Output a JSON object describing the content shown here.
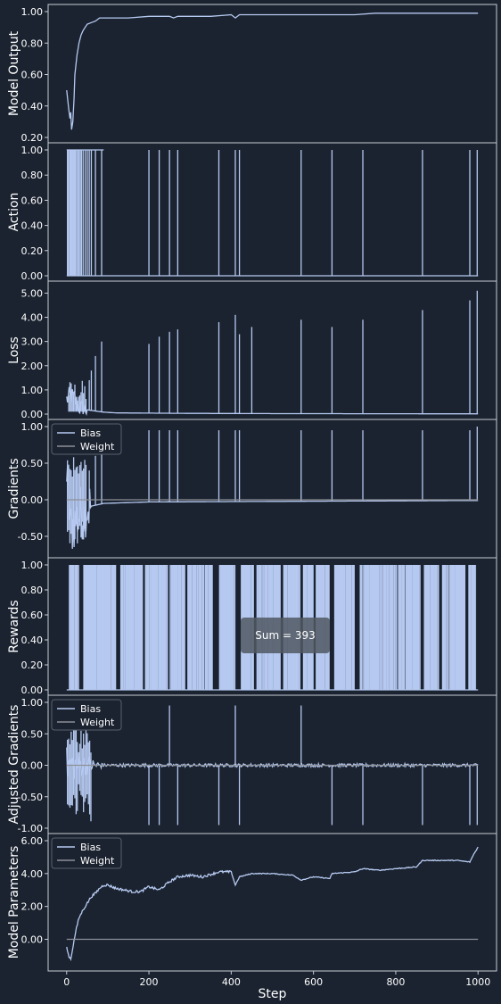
{
  "chart_data": [
    {
      "type": "line",
      "ylabel": "Model Output",
      "ylim": [
        0.2,
        1.0
      ],
      "yticks": [
        0.2,
        0.4,
        0.6,
        0.8,
        1.0
      ],
      "ytick_labels": [
        "0.20",
        "0.40",
        "0.60",
        "0.80",
        "1.00"
      ],
      "series": [
        {
          "x": [
            0,
            5,
            8,
            10,
            12,
            15,
            18,
            20,
            25,
            30,
            35,
            40,
            50,
            60,
            70,
            80,
            90,
            100,
            150,
            200,
            250,
            260,
            270,
            300,
            350,
            400,
            410,
            420,
            450,
            500,
            550,
            600,
            650,
            700,
            750,
            800,
            850,
            900,
            950,
            1000
          ],
          "y": [
            0.5,
            0.38,
            0.32,
            0.36,
            0.25,
            0.3,
            0.45,
            0.6,
            0.72,
            0.8,
            0.85,
            0.88,
            0.92,
            0.93,
            0.94,
            0.96,
            0.96,
            0.96,
            0.96,
            0.97,
            0.97,
            0.96,
            0.97,
            0.97,
            0.97,
            0.98,
            0.96,
            0.98,
            0.98,
            0.98,
            0.98,
            0.98,
            0.98,
            0.98,
            0.99,
            0.99,
            0.99,
            0.99,
            0.99,
            0.99
          ]
        }
      ]
    },
    {
      "type": "line",
      "ylabel": "Action",
      "ylim": [
        0.0,
        1.0
      ],
      "yticks": [
        0.0,
        0.2,
        0.4,
        0.6,
        0.8,
        1.0
      ],
      "ytick_labels": [
        "0.00",
        "0.20",
        "0.40",
        "0.60",
        "0.80",
        "1.00"
      ],
      "spikes": [
        2,
        4,
        7,
        9,
        11,
        13,
        15,
        17,
        19,
        21,
        24,
        27,
        30,
        33,
        36,
        40,
        45,
        50,
        55,
        60,
        70,
        85,
        200,
        225,
        250,
        270,
        370,
        410,
        420,
        570,
        645,
        720,
        865,
        980,
        998
      ]
    },
    {
      "type": "line",
      "ylabel": "Loss",
      "ylim": [
        0.0,
        5.2
      ],
      "yticks": [
        0,
        1,
        2,
        3,
        4,
        5
      ],
      "ytick_labels": [
        "0.00",
        "1.00",
        "2.00",
        "3.00",
        "4.00",
        "5.00"
      ],
      "base": [
        [
          0,
          0.6
        ],
        [
          10,
          0.8
        ],
        [
          20,
          0.6
        ],
        [
          30,
          0.3
        ],
        [
          40,
          0.2
        ],
        [
          60,
          0.15
        ],
        [
          90,
          0.08
        ],
        [
          120,
          0.05
        ],
        [
          200,
          0.04
        ],
        [
          300,
          0.03
        ],
        [
          500,
          0.02
        ],
        [
          1000,
          0.01
        ]
      ],
      "spikes": [
        {
          "x": 55,
          "y": 1.4
        },
        {
          "x": 60,
          "y": 1.8
        },
        {
          "x": 70,
          "y": 2.4
        },
        {
          "x": 85,
          "y": 3.0
        },
        {
          "x": 200,
          "y": 2.9
        },
        {
          "x": 225,
          "y": 3.2
        },
        {
          "x": 250,
          "y": 3.4
        },
        {
          "x": 270,
          "y": 3.5
        },
        {
          "x": 370,
          "y": 3.8
        },
        {
          "x": 410,
          "y": 4.1
        },
        {
          "x": 420,
          "y": 3.3
        },
        {
          "x": 450,
          "y": 3.6
        },
        {
          "x": 570,
          "y": 3.9
        },
        {
          "x": 645,
          "y": 3.6
        },
        {
          "x": 720,
          "y": 3.9
        },
        {
          "x": 865,
          "y": 4.3
        },
        {
          "x": 980,
          "y": 4.7
        },
        {
          "x": 998,
          "y": 5.1
        }
      ],
      "noisy_until": 50
    },
    {
      "type": "line",
      "ylabel": "Gradients",
      "ylim": [
        -0.72,
        1.0
      ],
      "yticks": [
        -0.5,
        0.0,
        0.5,
        1.0
      ],
      "ytick_labels": [
        "-0.50",
        "0.00",
        "0.50",
        "1.00"
      ],
      "legend": [
        "Bias",
        "Weight"
      ],
      "series": [
        {
          "name": "Bias",
          "base": [
            [
              0,
              0.3
            ],
            [
              10,
              -0.4
            ],
            [
              20,
              -0.3
            ],
            [
              30,
              -0.2
            ],
            [
              50,
              -0.1
            ],
            [
              90,
              -0.05
            ],
            [
              200,
              -0.03
            ],
            [
              600,
              -0.02
            ],
            [
              1000,
              -0.01
            ]
          ],
          "spikes": [
            {
              "x": 55,
              "y": 0.4
            },
            {
              "x": 70,
              "y": 0.6
            },
            {
              "x": 85,
              "y": 0.9
            },
            {
              "x": 200,
              "y": 0.95
            },
            {
              "x": 225,
              "y": 0.95
            },
            {
              "x": 250,
              "y": 0.95
            },
            {
              "x": 270,
              "y": 0.95
            },
            {
              "x": 370,
              "y": 0.95
            },
            {
              "x": 410,
              "y": 0.95
            },
            {
              "x": 420,
              "y": 0.95
            },
            {
              "x": 570,
              "y": 0.95
            },
            {
              "x": 645,
              "y": 0.95
            },
            {
              "x": 720,
              "y": 0.95
            },
            {
              "x": 865,
              "y": 0.95
            },
            {
              "x": 980,
              "y": 0.95
            },
            {
              "x": 998,
              "y": 1.0
            }
          ]
        },
        {
          "name": "Weight",
          "constant": 0.0
        }
      ]
    },
    {
      "type": "bar",
      "ylabel": "Rewards",
      "ylim": [
        0.0,
        1.0
      ],
      "yticks": [
        0.0,
        0.2,
        0.4,
        0.6,
        0.8,
        1.0
      ],
      "ytick_labels": [
        "0.00",
        "0.20",
        "0.40",
        "0.60",
        "0.80",
        "1.00"
      ],
      "annotation": "Sum = 393",
      "zero_gaps": [
        [
          0,
          5
        ],
        [
          30,
          40
        ],
        [
          120,
          130
        ],
        [
          185,
          190
        ],
        [
          246,
          250
        ],
        [
          290,
          293
        ],
        [
          355,
          370
        ],
        [
          410,
          422
        ],
        [
          455,
          460
        ],
        [
          520,
          526
        ],
        [
          568,
          574
        ],
        [
          600,
          605
        ],
        [
          640,
          650
        ],
        [
          700,
          712
        ],
        [
          860,
          868
        ],
        [
          905,
          912
        ],
        [
          970,
          976
        ],
        [
          995,
          1000
        ]
      ]
    },
    {
      "type": "line",
      "ylabel": "Adjusted Gradients",
      "ylim": [
        -1.0,
        1.0
      ],
      "yticks": [
        -1.0,
        -0.5,
        0.0,
        0.5,
        1.0
      ],
      "ytick_labels": [
        "-1.00",
        "-0.50",
        "0.00",
        "0.50",
        "1.00"
      ],
      "legend": [
        "Bias",
        "Weight"
      ],
      "series": [
        {
          "name": "Bias",
          "up_spikes": [
            {
              "x": 250,
              "y": 0.95
            },
            {
              "x": 410,
              "y": 0.95
            },
            {
              "x": 570,
              "y": 0.95
            }
          ],
          "down_spikes": [
            {
              "x": 200,
              "y": -0.95
            },
            {
              "x": 225,
              "y": -0.95
            },
            {
              "x": 270,
              "y": -0.95
            },
            {
              "x": 370,
              "y": -0.95
            },
            {
              "x": 420,
              "y": -0.95
            },
            {
              "x": 645,
              "y": -0.95
            },
            {
              "x": 720,
              "y": -0.95
            },
            {
              "x": 865,
              "y": -0.95
            },
            {
              "x": 980,
              "y": -0.95
            },
            {
              "x": 998,
              "y": -0.95
            }
          ],
          "noisy_until": 90
        },
        {
          "name": "Weight",
          "constant": 0.0
        }
      ]
    },
    {
      "type": "line",
      "ylabel": "Model Parameters",
      "ylim": [
        -1.6,
        6.0
      ],
      "yticks": [
        0,
        2,
        4,
        6
      ],
      "ytick_labels": [
        "0.00",
        "2.00",
        "4.00",
        "6.00"
      ],
      "xlabel": "Step",
      "xticks": [
        0,
        200,
        400,
        600,
        800,
        1000
      ],
      "xlim": [
        -45,
        1045
      ],
      "legend": [
        "Bias",
        "Weight"
      ],
      "series": [
        {
          "name": "Bias",
          "x": [
            0,
            5,
            10,
            15,
            20,
            25,
            30,
            40,
            50,
            60,
            70,
            80,
            90,
            100,
            120,
            140,
            160,
            180,
            200,
            225,
            250,
            270,
            300,
            330,
            370,
            400,
            410,
            420,
            450,
            500,
            550,
            570,
            600,
            640,
            645,
            700,
            720,
            760,
            800,
            850,
            865,
            900,
            950,
            980,
            990,
            1000
          ],
          "y": [
            -0.5,
            -1.0,
            -1.2,
            -0.5,
            0.2,
            0.8,
            1.3,
            1.8,
            2.2,
            2.6,
            2.8,
            3.1,
            3.3,
            3.3,
            3.1,
            3.0,
            2.9,
            2.9,
            3.2,
            3.0,
            3.5,
            3.8,
            3.9,
            3.8,
            4.1,
            4.1,
            3.3,
            3.8,
            4.0,
            4.0,
            3.9,
            3.6,
            3.8,
            3.7,
            4.0,
            4.1,
            4.3,
            4.2,
            4.3,
            4.4,
            4.8,
            4.8,
            4.8,
            4.7,
            5.2,
            5.6
          ]
        },
        {
          "name": "Weight",
          "constant": 0.0
        }
      ]
    }
  ],
  "colors": {
    "background": "#1b2330",
    "axes": "#c7ccd3",
    "bias": "#b6c9f0",
    "weight": "#8d9097",
    "annotation_box": "#505862"
  }
}
